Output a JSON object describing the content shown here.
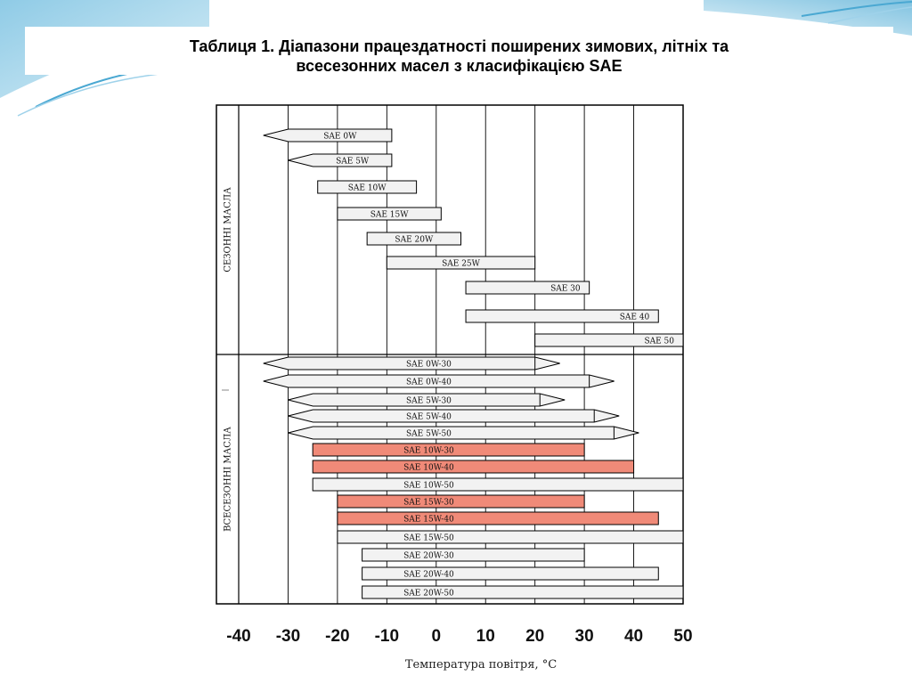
{
  "title": {
    "line1": "Таблиця 1. Діапазони працездатності поширених зимових, літніх та",
    "line2": "всесезонних масел з класифікацією SAE"
  },
  "colors": {
    "bar_fill": "#f2f2f2",
    "bar_highlight": "#f08a78",
    "line": "#000000",
    "slide_accent": "#5fb3d6"
  },
  "chart_data": {
    "type": "bar",
    "orientation": "horizontal-range",
    "xlabel": "Температура повітря, °С",
    "xlim": [
      -40,
      50
    ],
    "xticks": [
      -40,
      -30,
      -20,
      -10,
      0,
      10,
      20,
      30,
      40,
      50
    ],
    "grid": true,
    "groups": [
      {
        "label": "СЕЗОННІ МАСЛА",
        "bars": [
          {
            "name": "SAE 0W",
            "min": -35,
            "max": -9,
            "open_low": true,
            "open_high": false,
            "highlight": false
          },
          {
            "name": "SAE 5W",
            "min": -30,
            "max": -9,
            "open_low": true,
            "open_high": false,
            "highlight": false
          },
          {
            "name": "SAE 10W",
            "min": -24,
            "max": -4,
            "open_low": false,
            "open_high": false,
            "highlight": false
          },
          {
            "name": "SAE 15W",
            "min": -20,
            "max": 1,
            "open_low": false,
            "open_high": false,
            "highlight": false
          },
          {
            "name": "SAE 20W",
            "min": -14,
            "max": 5,
            "open_low": false,
            "open_high": false,
            "highlight": false
          },
          {
            "name": "SAE 25W",
            "min": -10,
            "max": 20,
            "open_low": false,
            "open_high": false,
            "highlight": false
          },
          {
            "name": "SAE 30",
            "min": 6,
            "max": 31,
            "open_low": false,
            "open_high": false,
            "highlight": false
          },
          {
            "name": "SAE 40",
            "min": 6,
            "max": 45,
            "open_low": false,
            "open_high": false,
            "highlight": false
          },
          {
            "name": "SAE 50",
            "min": 20,
            "max": 50,
            "open_low": false,
            "open_high": false,
            "highlight": false
          }
        ]
      },
      {
        "label": "ВСЕСЕЗОННІ МАСЛА",
        "bars": [
          {
            "name": "SAE 0W-30",
            "min": -35,
            "max": 20,
            "open_low": true,
            "open_high": true,
            "highlight": false
          },
          {
            "name": "SAE 0W-40",
            "min": -35,
            "max": 31,
            "open_low": true,
            "open_high": true,
            "highlight": false
          },
          {
            "name": "SAE 5W-30",
            "min": -30,
            "max": 21,
            "open_low": true,
            "open_high": true,
            "highlight": false
          },
          {
            "name": "SAE 5W-40",
            "min": -30,
            "max": 32,
            "open_low": true,
            "open_high": true,
            "highlight": false
          },
          {
            "name": "SAE 5W-50",
            "min": -30,
            "max": 36,
            "open_low": true,
            "open_high": true,
            "highlight": false
          },
          {
            "name": "SAE 10W-30",
            "min": -25,
            "max": 30,
            "open_low": false,
            "open_high": false,
            "highlight": true
          },
          {
            "name": "SAE 10W-40",
            "min": -25,
            "max": 40,
            "open_low": false,
            "open_high": false,
            "highlight": true
          },
          {
            "name": "SAE 10W-50",
            "min": -25,
            "max": 50,
            "open_low": false,
            "open_high": false,
            "highlight": false
          },
          {
            "name": "SAE 15W-30",
            "min": -20,
            "max": 30,
            "open_low": false,
            "open_high": false,
            "highlight": true
          },
          {
            "name": "SAE 15W-40",
            "min": -20,
            "max": 45,
            "open_low": false,
            "open_high": false,
            "highlight": true
          },
          {
            "name": "SAE 15W-50",
            "min": -20,
            "max": 50,
            "open_low": false,
            "open_high": false,
            "highlight": false
          },
          {
            "name": "SAE 20W-30",
            "min": -15,
            "max": 30,
            "open_low": false,
            "open_high": false,
            "highlight": false
          },
          {
            "name": "SAE 20W-40",
            "min": -15,
            "max": 45,
            "open_low": false,
            "open_high": false,
            "highlight": false
          },
          {
            "name": "SAE 20W-50",
            "min": -15,
            "max": 50,
            "open_low": false,
            "open_high": false,
            "highlight": false
          }
        ]
      }
    ]
  }
}
